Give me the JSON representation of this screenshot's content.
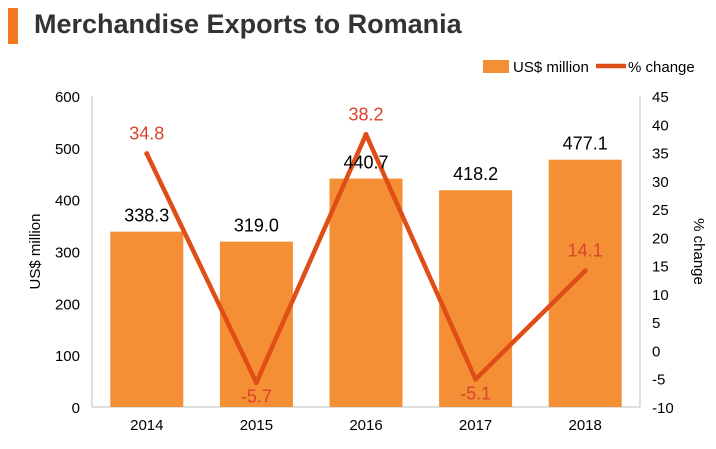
{
  "colors": {
    "accent": "#f47a1f",
    "bar": "#f58f36",
    "line": "#e04e17",
    "title": "#333333",
    "pct_label": "#d9432b",
    "axis_text": "#000000"
  },
  "chart_data": {
    "type": "bar",
    "title": "Merchandise Exports to Romania",
    "categories": [
      "2014",
      "2015",
      "2016",
      "2017",
      "2018"
    ],
    "series": [
      {
        "name": "US$ million",
        "type": "bar",
        "axis": "left",
        "values": [
          338.3,
          319.0,
          440.7,
          418.2,
          477.1
        ],
        "labels": [
          "338.3",
          "319.0",
          "440.7",
          "418.2",
          "477.1"
        ]
      },
      {
        "name": "% change",
        "type": "line",
        "axis": "right",
        "values": [
          34.8,
          -5.7,
          38.2,
          -5.1,
          14.1
        ],
        "labels": [
          "34.8",
          "-5.7",
          "38.2",
          "-5.1",
          "14.1"
        ]
      }
    ],
    "ylabel": "US$ million",
    "y2label": "% change",
    "ylim": [
      0,
      600
    ],
    "yticks": [
      "0",
      "100",
      "200",
      "300",
      "400",
      "500",
      "600"
    ],
    "y2lim": [
      -10,
      45
    ],
    "y2ticks": [
      "-10",
      "-5",
      "0",
      "5",
      "10",
      "15",
      "20",
      "25",
      "30",
      "35",
      "40",
      "45"
    ],
    "legend": "top-right",
    "grid": false
  }
}
